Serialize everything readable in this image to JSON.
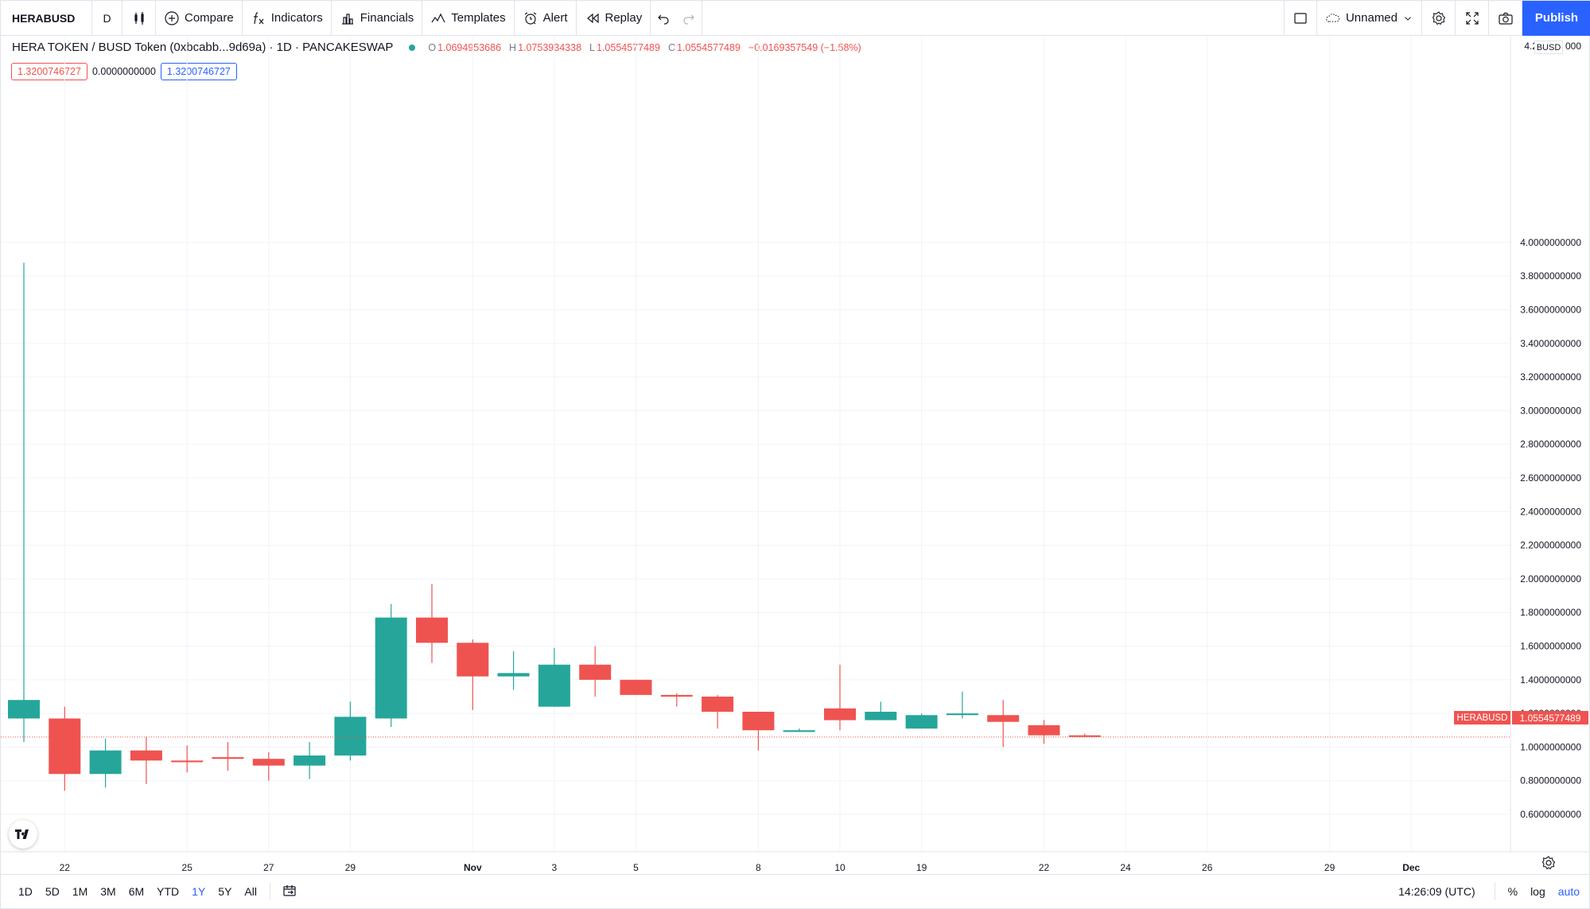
{
  "toolbar": {
    "symbol": "HERABUSD",
    "interval": "D",
    "compare": "Compare",
    "indicators": "Indicators",
    "financials": "Financials",
    "templates": "Templates",
    "alert": "Alert",
    "replay": "Replay",
    "layout_name": "Unnamed",
    "publish": "Publish"
  },
  "legend": {
    "title": "HERA TOKEN / BUSD Token (0xbcabb...9d69a) · 1D · PANCAKESWAP",
    "o_label": "O",
    "o": "1.0694953686",
    "h_label": "H",
    "h": "1.0753934338",
    "l_label": "L",
    "l": "1.0554577489",
    "c_label": "C",
    "c": "1.0554577489",
    "change": "−0.0169357549 (−1.58%)",
    "value1": "1.3200746727",
    "value2": "0.0000000000",
    "value3": "1.3200746727"
  },
  "price_axis": {
    "currency": "BUSD",
    "last_price": "1.0554577489",
    "last_symbol": "HERABUSD",
    "top_partial_left": "4.2",
    "top_partial_right": "000"
  },
  "colors": {
    "up": "#26a69a",
    "down": "#ef5350",
    "accent": "#2962ff",
    "grid": "#f0f3fa"
  },
  "chart_data": {
    "type": "candlestick",
    "ylim": [
      0.5,
      4.25
    ],
    "yticks": [
      "4.0000000000",
      "3.8000000000",
      "3.6000000000",
      "3.4000000000",
      "3.2000000000",
      "3.0000000000",
      "2.8000000000",
      "2.6000000000",
      "2.4000000000",
      "2.2000000000",
      "2.0000000000",
      "1.8000000000",
      "1.6000000000",
      "1.4000000000",
      "1.2000000000",
      "1.0000000000",
      "0.8000000000",
      "0.6000000000"
    ],
    "ytick_values": [
      4.0,
      3.8,
      3.6,
      3.4,
      3.2,
      3.0,
      2.8,
      2.6,
      2.4,
      2.2,
      2.0,
      1.8,
      1.6,
      1.4,
      1.2,
      1.0,
      0.8,
      0.6
    ],
    "xticks": [
      {
        "label": "22",
        "bar": 1
      },
      {
        "label": "25",
        "bar": 4
      },
      {
        "label": "27",
        "bar": 6
      },
      {
        "label": "29",
        "bar": 8
      },
      {
        "label": "Nov",
        "bar": 11
      },
      {
        "label": "3",
        "bar": 13
      },
      {
        "label": "5",
        "bar": 15
      },
      {
        "label": "8",
        "bar": 18
      },
      {
        "label": "10",
        "bar": 20
      },
      {
        "label": "19",
        "bar": 22
      },
      {
        "label": "22",
        "bar": 25
      },
      {
        "label": "24",
        "bar": 27
      },
      {
        "label": "26",
        "bar": 29
      },
      {
        "label": "29",
        "bar": 32
      },
      {
        "label": "Dec",
        "bar": 34
      }
    ],
    "candles": [
      {
        "o": 1.17,
        "h": 3.88,
        "l": 1.03,
        "c": 1.28
      },
      {
        "o": 1.17,
        "h": 1.24,
        "l": 0.74,
        "c": 0.84
      },
      {
        "o": 0.84,
        "h": 1.05,
        "l": 0.76,
        "c": 0.98
      },
      {
        "o": 0.98,
        "h": 1.06,
        "l": 0.78,
        "c": 0.92
      },
      {
        "o": 0.92,
        "h": 1.01,
        "l": 0.85,
        "c": 0.91
      },
      {
        "o": 0.94,
        "h": 1.03,
        "l": 0.86,
        "c": 0.93
      },
      {
        "o": 0.93,
        "h": 0.97,
        "l": 0.8,
        "c": 0.89
      },
      {
        "o": 0.89,
        "h": 1.03,
        "l": 0.81,
        "c": 0.95
      },
      {
        "o": 0.95,
        "h": 1.27,
        "l": 0.92,
        "c": 1.18
      },
      {
        "o": 1.17,
        "h": 1.85,
        "l": 1.12,
        "c": 1.77
      },
      {
        "o": 1.77,
        "h": 1.97,
        "l": 1.5,
        "c": 1.62
      },
      {
        "o": 1.62,
        "h": 1.64,
        "l": 1.22,
        "c": 1.42
      },
      {
        "o": 1.42,
        "h": 1.57,
        "l": 1.34,
        "c": 1.44
      },
      {
        "o": 1.24,
        "h": 1.59,
        "l": 1.24,
        "c": 1.49
      },
      {
        "o": 1.49,
        "h": 1.6,
        "l": 1.3,
        "c": 1.4
      },
      {
        "o": 1.4,
        "h": 1.4,
        "l": 1.31,
        "c": 1.31
      },
      {
        "o": 1.31,
        "h": 1.32,
        "l": 1.24,
        "c": 1.3
      },
      {
        "o": 1.3,
        "h": 1.31,
        "l": 1.11,
        "c": 1.21
      },
      {
        "o": 1.21,
        "h": 1.21,
        "l": 0.98,
        "c": 1.1
      },
      {
        "o": 1.09,
        "h": 1.11,
        "l": 1.09,
        "c": 1.1
      },
      {
        "o": 1.23,
        "h": 1.49,
        "l": 1.1,
        "c": 1.16
      },
      {
        "o": 1.16,
        "h": 1.27,
        "l": 1.16,
        "c": 1.21
      },
      {
        "o": 1.11,
        "h": 1.2,
        "l": 1.11,
        "c": 1.19
      },
      {
        "o": 1.19,
        "h": 1.33,
        "l": 1.17,
        "c": 1.2
      },
      {
        "o": 1.19,
        "h": 1.28,
        "l": 1.0,
        "c": 1.15
      },
      {
        "o": 1.13,
        "h": 1.16,
        "l": 1.02,
        "c": 1.07
      },
      {
        "o": 1.07,
        "h": 1.08,
        "l": 1.06,
        "c": 1.06
      }
    ]
  },
  "bottombar": {
    "ranges": [
      "1D",
      "5D",
      "1M",
      "3M",
      "6M",
      "YTD",
      "1Y",
      "5Y",
      "All"
    ],
    "active_range": "1Y",
    "time": "14:26:09 (UTC)",
    "percent": "%",
    "log": "log",
    "auto": "auto"
  }
}
